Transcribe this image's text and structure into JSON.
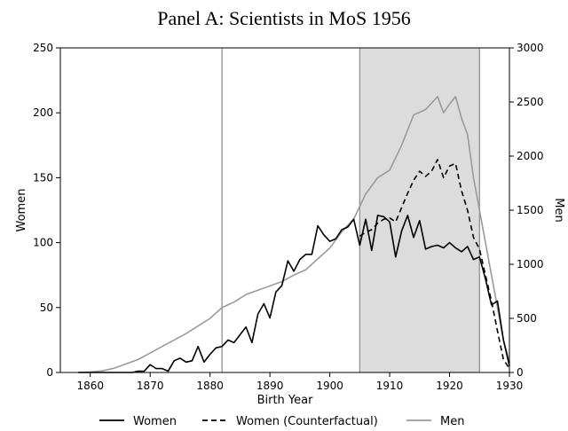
{
  "chart_data": {
    "type": "line",
    "title": "Panel A: Scientists in MoS 1956",
    "xlabel": "Birth Year",
    "ylabel_left": "Women",
    "ylabel_right": "Men",
    "xlim": [
      1855,
      1930
    ],
    "ylim_left": [
      0,
      250
    ],
    "ylim_right": [
      0,
      3000
    ],
    "x_ticks": [
      1860,
      1870,
      1880,
      1890,
      1900,
      1910,
      1920,
      1930
    ],
    "y_ticks_left": [
      0,
      50,
      100,
      150,
      200,
      250
    ],
    "y_ticks_right": [
      0,
      500,
      1000,
      1500,
      2000,
      2500,
      3000
    ],
    "vertical_lines": [
      1882,
      1905,
      1925
    ],
    "shaded_region": [
      1905,
      1925
    ],
    "grid": false,
    "legend_position": "bottom",
    "series": [
      {
        "name": "Women",
        "axis": "left",
        "style": "solid-black",
        "x": [
          1858,
          1859,
          1860,
          1861,
          1862,
          1863,
          1864,
          1865,
          1866,
          1867,
          1868,
          1869,
          1870,
          1871,
          1872,
          1873,
          1874,
          1875,
          1876,
          1877,
          1878,
          1879,
          1880,
          1881,
          1882,
          1883,
          1884,
          1885,
          1886,
          1887,
          1888,
          1889,
          1890,
          1891,
          1892,
          1893,
          1894,
          1895,
          1896,
          1897,
          1898,
          1899,
          1900,
          1901,
          1902,
          1903,
          1904,
          1905,
          1906,
          1907,
          1908,
          1909,
          1910,
          1911,
          1912,
          1913,
          1914,
          1915,
          1916,
          1917,
          1918,
          1919,
          1920,
          1921,
          1922,
          1923,
          1924,
          1925,
          1926,
          1927,
          1928,
          1929,
          1930
        ],
        "values": [
          0,
          0,
          0,
          0,
          0,
          0,
          0,
          0,
          0,
          0,
          1,
          1,
          6,
          3,
          3,
          1,
          9,
          11,
          8,
          9,
          20,
          8,
          14,
          19,
          20,
          25,
          23,
          29,
          35,
          23,
          45,
          53,
          42,
          62,
          67,
          86,
          78,
          87,
          91,
          91,
          113,
          106,
          101,
          103,
          110,
          112,
          118,
          98,
          118,
          94,
          121,
          120,
          116,
          89,
          109,
          121,
          104,
          117,
          95,
          97,
          98,
          96,
          100,
          96,
          93,
          97,
          87,
          89,
          72,
          52,
          55,
          25,
          5
        ]
      },
      {
        "name": "Women (Counterfactual)",
        "axis": "left",
        "style": "dashed-black",
        "x": [
          1905,
          1906,
          1907,
          1908,
          1909,
          1910,
          1911,
          1912,
          1913,
          1914,
          1915,
          1916,
          1917,
          1918,
          1919,
          1920,
          1921,
          1922,
          1923,
          1924,
          1925,
          1926,
          1927,
          1928,
          1929,
          1930
        ],
        "values": [
          105,
          108,
          110,
          115,
          118,
          119,
          116,
          127,
          138,
          148,
          155,
          151,
          155,
          164,
          150,
          159,
          161,
          140,
          125,
          104,
          95,
          75,
          55,
          32,
          10,
          3
        ]
      },
      {
        "name": "Men",
        "axis": "right",
        "style": "solid-gray",
        "x": [
          1858,
          1860,
          1862,
          1864,
          1866,
          1868,
          1870,
          1872,
          1874,
          1876,
          1878,
          1880,
          1882,
          1884,
          1886,
          1888,
          1890,
          1892,
          1894,
          1896,
          1898,
          1900,
          1902,
          1904,
          1906,
          1908,
          1910,
          1912,
          1914,
          1916,
          1918,
          1919,
          1920,
          1921,
          1922,
          1923,
          1924,
          1925,
          1926,
          1927,
          1928,
          1929,
          1930
        ],
        "values": [
          0,
          5,
          15,
          40,
          80,
          120,
          180,
          240,
          300,
          360,
          430,
          500,
          600,
          650,
          720,
          760,
          800,
          840,
          900,
          950,
          1050,
          1150,
          1300,
          1420,
          1650,
          1800,
          1870,
          2100,
          2380,
          2430,
          2550,
          2400,
          2480,
          2550,
          2350,
          2200,
          1800,
          1500,
          1200,
          900,
          600,
          300,
          100
        ]
      }
    ]
  }
}
